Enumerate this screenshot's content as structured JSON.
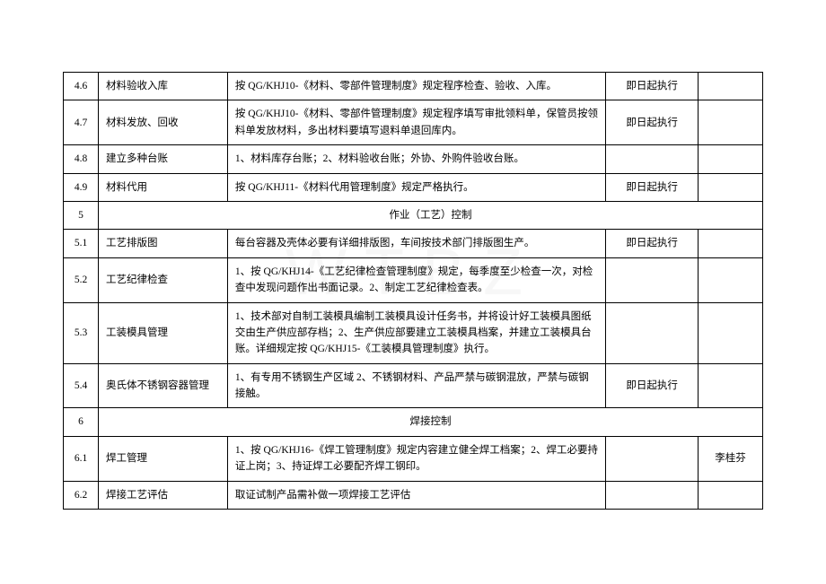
{
  "watermark": "WTBZ",
  "rows": [
    {
      "num": "4.6",
      "item": "材料验收入库",
      "desc": "按 QG/KHJ10-《材料、零部件管理制度》规定程序检查、验收、入库。",
      "status": "即日起执行",
      "person": ""
    },
    {
      "num": "4.7",
      "item": "材料发放、回收",
      "desc": "按 QG/KHJ10-《材料、零部件管理制度》规定程序填写审批领料单，保管员按领料单发放材料，多出材料要填写退料单退回库内。",
      "status": "即日起执行",
      "person": ""
    },
    {
      "num": "4.8",
      "item": "建立多种台账",
      "desc": "1、材料库存台账；2、材料验收台账；外协、外购件验收台账。",
      "status": "",
      "person": ""
    },
    {
      "num": "4.9",
      "item": "材料代用",
      "desc": "按 QG/KHJ11-《材料代用管理制度》规定严格执行。",
      "status": "即日起执行",
      "person": ""
    },
    {
      "num": "5",
      "section_title": "作业（工艺）控制"
    },
    {
      "num": "5.1",
      "item": "工艺排版图",
      "desc": "每台容器及壳体必要有详细排版图，车间按技术部门排版图生产。",
      "status": "即日起执行",
      "person": ""
    },
    {
      "num": "5.2",
      "item": "工艺纪律检查",
      "desc": "1、按 QG/KHJ14-《工艺纪律检查管理制度》规定，每季度至少检查一次，对检查中发现问题作出书面记录。2、制定工艺纪律检查表。",
      "status": "",
      "person": ""
    },
    {
      "num": "5.3",
      "item": "工装模具管理",
      "desc": "1、技术部对自制工装模具编制工装模具设计任务书，并将设计好工装模具图纸交由生产供应部存档；2、生产供应部要建立工装模具档案，并建立工装模具台账。详细规定按 QG/KHJ15-《工装模具管理制度》执行。",
      "status": "",
      "person": ""
    },
    {
      "num": "5.4",
      "item": "奥氏体不锈钢容器管理",
      "desc": "1、有专用不锈钢生产区域 2、不锈钢材料、产品严禁与碳钢混放，严禁与碳钢接触。",
      "status": "即日起执行",
      "person": ""
    },
    {
      "num": "6",
      "section_title": "焊接控制"
    },
    {
      "num": "6.1",
      "item": "焊工管理",
      "desc": "1、按 QG/KHJ16-《焊工管理制度》规定内容建立健全焊工档案；2、焊工必要持证上岗；3、持证焊工必要配齐焊工钢印。",
      "status": "",
      "person": "李桂芬"
    },
    {
      "num": "6.2",
      "item": "焊接工艺评估",
      "desc": "取证试制产品需补做一项焊接工艺评估",
      "status": "",
      "person": ""
    }
  ],
  "colors": {
    "background": "#ffffff",
    "border": "#000000",
    "text": "#000000",
    "watermark": "#f0f0f0"
  },
  "typography": {
    "cell_fontsize": 11.5,
    "watermark_fontsize": 72,
    "line_height": 1.6
  },
  "column_widths": {
    "num": 38,
    "item": 140,
    "desc": 410,
    "status": 100,
    "person": 70
  }
}
